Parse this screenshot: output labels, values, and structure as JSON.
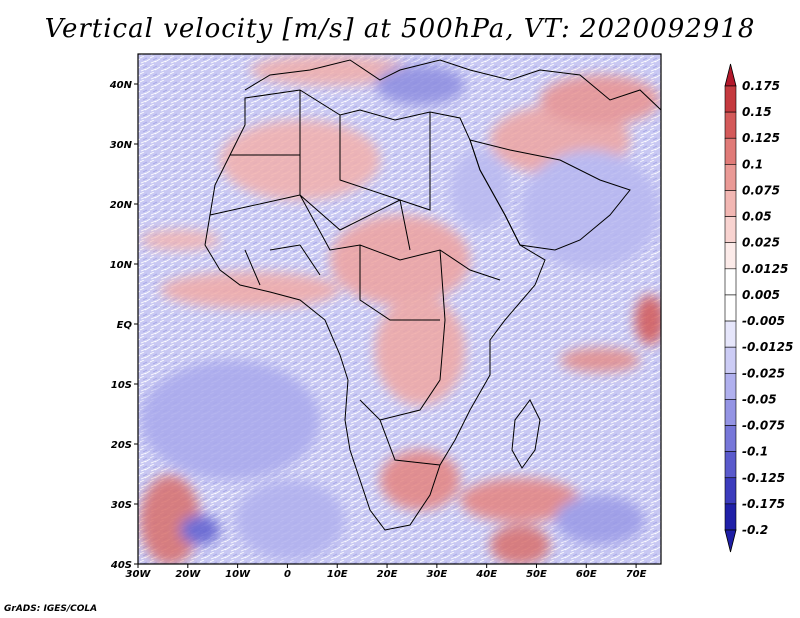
{
  "title": "Vertical velocity [m/s] at 500hPa, VT: 2020092918",
  "credit": "GrADS: IGES/COLA",
  "map": {
    "projection": "latlon",
    "lon_range": [
      -30,
      75
    ],
    "lat_range": [
      -40,
      45
    ],
    "x_ticks": [
      {
        "value": -30,
        "label": "30W"
      },
      {
        "value": -20,
        "label": "20W"
      },
      {
        "value": -10,
        "label": "10W"
      },
      {
        "value": 0,
        "label": "0"
      },
      {
        "value": 10,
        "label": "10E"
      },
      {
        "value": 20,
        "label": "20E"
      },
      {
        "value": 30,
        "label": "30E"
      },
      {
        "value": 40,
        "label": "40E"
      },
      {
        "value": 50,
        "label": "50E"
      },
      {
        "value": 60,
        "label": "60E"
      },
      {
        "value": 70,
        "label": "70E"
      }
    ],
    "y_ticks": [
      {
        "value": -40,
        "label": "40S"
      },
      {
        "value": -30,
        "label": "30S"
      },
      {
        "value": -20,
        "label": "20S"
      },
      {
        "value": -10,
        "label": "10S"
      },
      {
        "value": 0,
        "label": "EQ"
      },
      {
        "value": 10,
        "label": "10N"
      },
      {
        "value": 20,
        "label": "20N"
      },
      {
        "value": 30,
        "label": "30N"
      },
      {
        "value": 40,
        "label": "40N"
      }
    ]
  },
  "colorbar": {
    "levels": [
      {
        "label": "0.175",
        "color": "#b2182b"
      },
      {
        "label": "0.15",
        "color": "#c53a3f"
      },
      {
        "label": "0.125",
        "color": "#d45a5a"
      },
      {
        "label": "0.1",
        "color": "#e07b78"
      },
      {
        "label": "0.075",
        "color": "#ea9a96"
      },
      {
        "label": "0.05",
        "color": "#f2b7b3"
      },
      {
        "label": "0.025",
        "color": "#f8d3d0"
      },
      {
        "label": "0.0125",
        "color": "#fcebe9"
      },
      {
        "label": "0.005",
        "color": "#ffffff"
      },
      {
        "label": "-0.005",
        "color": "#ffffff"
      },
      {
        "label": "-0.0125",
        "color": "#e6e6fb"
      },
      {
        "label": "-0.025",
        "color": "#ccccf5"
      },
      {
        "label": "-0.05",
        "color": "#b0b0ee"
      },
      {
        "label": "-0.075",
        "color": "#9494e4"
      },
      {
        "label": "-0.1",
        "color": "#7777d9"
      },
      {
        "label": "-0.125",
        "color": "#5a5acc"
      },
      {
        "label": "-0.175",
        "color": "#3c3cbd"
      },
      {
        "label": "-0.2",
        "color": "#2020a8"
      }
    ],
    "top_color": "#b2182b",
    "bottom_color": "#1e1ea6"
  }
}
